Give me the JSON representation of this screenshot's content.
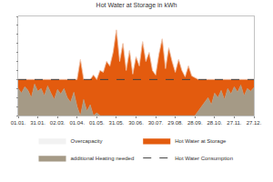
{
  "chart_data": {
    "type": "area",
    "title": "Hot Water at Storage in kWh",
    "categories": [
      "01.01.",
      null,
      null,
      null,
      null,
      null,
      "31.01.",
      null,
      null,
      null,
      null,
      null,
      "02.03.",
      null,
      null,
      null,
      null,
      null,
      "01.04.",
      null,
      null,
      null,
      null,
      null,
      "01.05.",
      null,
      null,
      null,
      null,
      null,
      "31.05.",
      null,
      null,
      null,
      null,
      null,
      "30.06.",
      null,
      null,
      null,
      null,
      null,
      "30.07.",
      null,
      null,
      null,
      null,
      null,
      "29.08.",
      null,
      null,
      null,
      null,
      null,
      "28.09.",
      null,
      null,
      null,
      null,
      null,
      "28.10.",
      null,
      null,
      null,
      null,
      null,
      "27.11.",
      null,
      null,
      null,
      null,
      null,
      "27.12."
    ],
    "stacked": true,
    "series": [
      {
        "name": "additional Heating needed",
        "type": "area",
        "color": "#a59a86",
        "values": [
          3,
          2.5,
          3.2,
          2.8,
          2,
          3.5,
          2.7,
          3,
          2.2,
          3.3,
          2.5,
          1.8,
          2.9,
          2.4,
          3,
          2,
          1.5,
          2.6,
          1,
          0,
          1.8,
          0.5,
          1.2,
          0,
          0.3,
          0,
          0,
          0,
          0,
          0,
          0,
          0,
          0,
          0,
          0,
          0,
          0,
          0,
          0,
          0,
          0,
          0,
          0,
          0,
          0,
          0,
          0,
          0,
          0,
          0,
          0,
          0,
          0,
          0,
          0,
          0.5,
          1,
          1.5,
          2,
          1.2,
          2.5,
          2,
          2.8,
          1.8,
          3,
          2.4,
          3.2,
          2.6,
          3.4,
          2.2,
          3,
          2.7,
          3.1
        ]
      },
      {
        "name": "Hot Water at Storage",
        "type": "area",
        "color": "#e35b0e",
        "values": [
          1,
          1.5,
          0.8,
          1.2,
          2,
          0.5,
          1.3,
          1,
          1.8,
          0.7,
          1.5,
          2.2,
          1.1,
          1.6,
          1,
          2,
          2.5,
          1.4,
          3,
          6.2,
          2.2,
          3.5,
          2.8,
          4.5,
          3.7,
          5,
          4.8,
          6,
          5.5,
          7,
          9.5,
          6,
          8,
          5,
          7.2,
          4.6,
          6.5,
          5.5,
          8.2,
          6,
          7,
          5,
          4.5,
          6.8,
          8.5,
          5.2,
          7.5,
          6,
          4.8,
          6.2,
          5,
          4.3,
          5.5,
          4.4,
          4.2,
          3.5,
          3,
          2.5,
          2,
          2.8,
          1.5,
          2,
          1.2,
          2.2,
          1,
          1.6,
          0.8,
          1.4,
          0.6,
          1.8,
          1,
          1.3,
          0.9
        ]
      },
      {
        "name": "Overcapacity",
        "type": "area",
        "color": "#f2f2f2",
        "values": [
          0,
          0,
          0,
          0,
          0,
          0,
          0,
          0,
          0,
          0,
          0,
          0,
          0,
          0,
          0,
          0,
          0,
          0,
          0,
          0,
          0,
          0,
          0,
          0,
          0,
          0,
          0,
          0,
          0,
          0,
          0,
          0,
          0,
          0,
          0,
          0,
          0,
          0,
          0,
          0,
          0,
          0,
          0,
          0,
          0,
          0,
          0,
          0,
          0,
          0,
          0,
          0,
          0,
          0,
          0,
          0,
          0,
          0,
          0,
          0,
          0,
          0,
          0,
          0,
          0,
          0,
          0,
          0,
          0,
          0,
          0,
          0,
          0
        ]
      },
      {
        "name": "Hot Water Consumption",
        "type": "line",
        "color": "#404040",
        "line_style": "dashed",
        "values": [
          4,
          4,
          4,
          4,
          4,
          4,
          4,
          4,
          4,
          4,
          4,
          4,
          4,
          4,
          4,
          4,
          4,
          4,
          4,
          4,
          4,
          4,
          4,
          4,
          4,
          4,
          4,
          4,
          4,
          4,
          4,
          4,
          4,
          4,
          4,
          4,
          4,
          4,
          4,
          4,
          4,
          4,
          4,
          4,
          4,
          4,
          4,
          4,
          4,
          4,
          4,
          4,
          4,
          4,
          4,
          4,
          4,
          4,
          4,
          4,
          4,
          4,
          4,
          4,
          4,
          4,
          4,
          4,
          4,
          4,
          4,
          4,
          4
        ]
      }
    ],
    "ylim": [
      0,
      11
    ],
    "yticks": [
      0,
      1,
      2,
      3,
      4,
      5,
      6,
      7,
      8,
      9,
      10,
      11
    ],
    "grid": false,
    "tick_labels": "x",
    "legend": "bottom"
  }
}
